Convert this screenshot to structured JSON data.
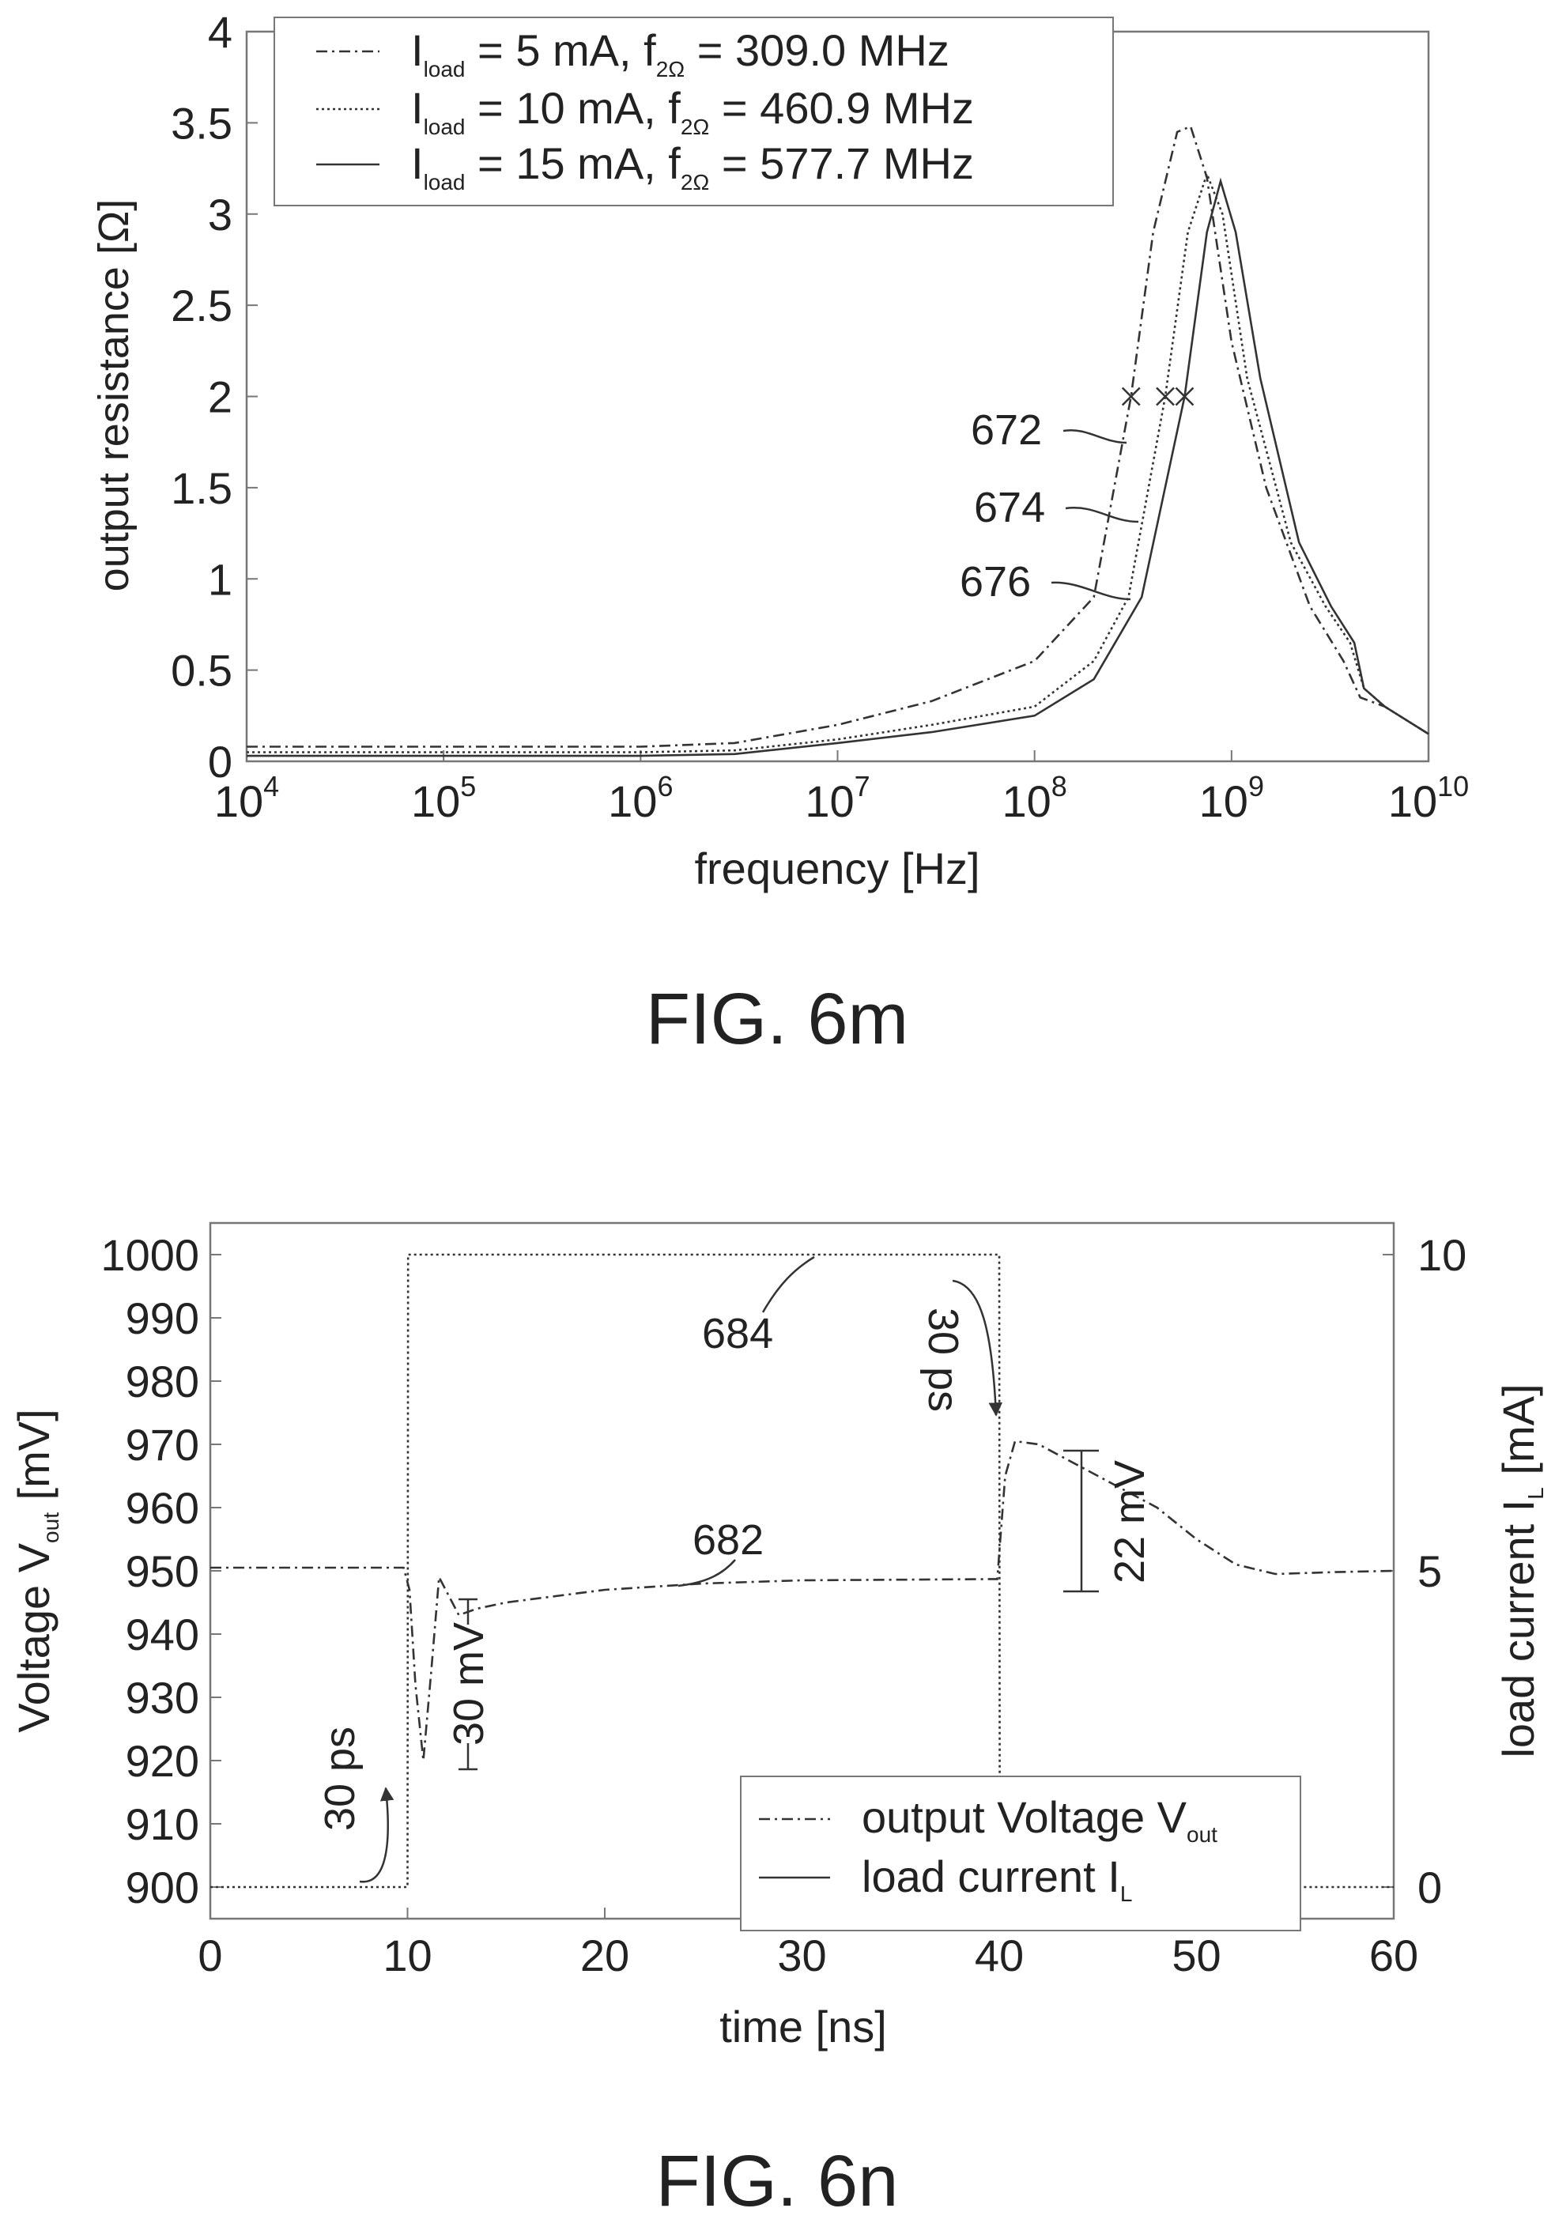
{
  "figures": {
    "fig_6m": {
      "caption": "FIG. 6m"
    },
    "fig_6n": {
      "caption": "FIG. 6n"
    }
  },
  "chart_data": [
    {
      "type": "line",
      "xlabel": "frequency [Hz]",
      "ylabel": "output resistance [Ω]",
      "xscale": "log",
      "xlim": [
        10000,
        10000000000
      ],
      "ylim": [
        0,
        4
      ],
      "x_ticks": [
        {
          "value": 10000,
          "base": "10",
          "exp": "4"
        },
        {
          "value": 100000,
          "base": "10",
          "exp": "5"
        },
        {
          "value": 1000000,
          "base": "10",
          "exp": "6"
        },
        {
          "value": 10000000,
          "base": "10",
          "exp": "7"
        },
        {
          "value": 100000000,
          "base": "10",
          "exp": "8"
        },
        {
          "value": 1000000000,
          "base": "10",
          "exp": "9"
        },
        {
          "value": 10000000000,
          "base": "10",
          "exp": "10"
        }
      ],
      "y_ticks": [
        "0",
        "0.5",
        "1",
        "1.5",
        "2",
        "2.5",
        "3",
        "3.5",
        "4"
      ],
      "legend_position": "top",
      "series": [
        {
          "legend": {
            "i": "I",
            "i_sub": "load",
            "mid": " = 5 mA, f",
            "f_sub": "2Ω",
            "tail": " = 309.0 MHz"
          },
          "ref_label": "672",
          "style": "dash-dot",
          "points": [
            [
              10000,
              0.08
            ],
            [
              1000000,
              0.08
            ],
            [
              3000000,
              0.1
            ],
            [
              10000000,
              0.2
            ],
            [
              30000000,
              0.33
            ],
            [
              100000000,
              0.55
            ],
            [
              200000000,
              0.9
            ],
            [
              309000000,
              2.0
            ],
            [
              400000000,
              2.9
            ],
            [
              530000000,
              3.45
            ],
            [
              620000000,
              3.48
            ],
            [
              750000000,
              3.2
            ],
            [
              1000000000,
              2.3
            ],
            [
              1500000000,
              1.5
            ],
            [
              2500000000,
              0.85
            ],
            [
              3700000000,
              0.55
            ],
            [
              4500000000,
              0.35
            ],
            [
              6000000000,
              0.3
            ],
            [
              10000000000,
              0.15
            ]
          ]
        },
        {
          "legend": {
            "i": "I",
            "i_sub": "load",
            "mid": " = 10 mA, f",
            "f_sub": "2Ω",
            "tail": " = 460.9 MHz"
          },
          "ref_label": "674",
          "style": "dotted",
          "points": [
            [
              10000,
              0.05
            ],
            [
              1000000,
              0.05
            ],
            [
              3000000,
              0.06
            ],
            [
              10000000,
              0.12
            ],
            [
              30000000,
              0.2
            ],
            [
              100000000,
              0.3
            ],
            [
              200000000,
              0.55
            ],
            [
              300000000,
              0.9
            ],
            [
              460900000,
              2.0
            ],
            [
              600000000,
              2.9
            ],
            [
              750000000,
              3.22
            ],
            [
              900000000,
              3.0
            ],
            [
              1200000000,
              2.1
            ],
            [
              2000000000,
              1.2
            ],
            [
              3000000000,
              0.85
            ],
            [
              4000000000,
              0.65
            ],
            [
              4700000000,
              0.4
            ],
            [
              6000000000,
              0.3
            ],
            [
              10000000000,
              0.15
            ]
          ]
        },
        {
          "legend": {
            "i": "I",
            "i_sub": "load",
            "mid": " = 15 mA, f",
            "f_sub": "2Ω",
            "tail": " = 577.7 MHz"
          },
          "ref_label": "676",
          "style": "solid",
          "points": [
            [
              10000,
              0.03
            ],
            [
              1000000,
              0.03
            ],
            [
              3000000,
              0.04
            ],
            [
              10000000,
              0.1
            ],
            [
              30000000,
              0.16
            ],
            [
              100000000,
              0.25
            ],
            [
              200000000,
              0.45
            ],
            [
              350000000,
              0.9
            ],
            [
              577700000,
              2.0
            ],
            [
              750000000,
              2.9
            ],
            [
              880000000,
              3.18
            ],
            [
              1050000000,
              2.9
            ],
            [
              1400000000,
              2.1
            ],
            [
              2200000000,
              1.2
            ],
            [
              3200000000,
              0.85
            ],
            [
              4200000000,
              0.65
            ],
            [
              4700000000,
              0.4
            ],
            [
              6000000000,
              0.3
            ],
            [
              10000000000,
              0.15
            ]
          ]
        }
      ],
      "markers": [
        [
          309000000,
          2.0
        ],
        [
          460900000,
          2.0
        ],
        [
          577700000,
          2.0
        ]
      ]
    },
    {
      "type": "line",
      "xlabel": "time [ns]",
      "ylabel_left": {
        "main": "Voltage V",
        "sub": "out",
        "unit": " [mV]"
      },
      "ylabel_right": {
        "main": "load current I",
        "sub": "L",
        "unit": " [mA]"
      },
      "xlim": [
        0,
        60
      ],
      "ylim_left": [
        895,
        1005
      ],
      "ylim_right": [
        -0.5,
        10.5
      ],
      "x_ticks": [
        "0",
        "10",
        "20",
        "30",
        "40",
        "50",
        "60"
      ],
      "y_ticks_left": [
        "900",
        "910",
        "920",
        "930",
        "940",
        "950",
        "960",
        "970",
        "980",
        "990",
        "1000"
      ],
      "y_ticks_right": [
        "0",
        "5",
        "10"
      ],
      "legend_position": "bottom-right",
      "series": [
        {
          "legend": {
            "main": "output Voltage V",
            "sub": "out"
          },
          "ref_label": "682",
          "axis": "left",
          "style": "dash-dot",
          "points": [
            [
              0,
              950.5
            ],
            [
              9.8,
              950.5
            ],
            [
              10.1,
              947
            ],
            [
              10.4,
              932
            ],
            [
              10.8,
              920
            ],
            [
              11.2,
              934
            ],
            [
              11.6,
              949
            ],
            [
              12.1,
              946
            ],
            [
              12.6,
              943
            ],
            [
              13.5,
              944
            ],
            [
              15,
              945
            ],
            [
              20,
              947
            ],
            [
              25,
              948
            ],
            [
              30,
              948.5
            ],
            [
              39.9,
              948.7
            ],
            [
              40.3,
              965
            ],
            [
              40.8,
              970.5
            ],
            [
              42,
              970
            ],
            [
              45,
              965
            ],
            [
              48,
              960
            ],
            [
              50,
              955
            ],
            [
              52,
              951
            ],
            [
              54,
              949.5
            ],
            [
              57,
              949.8
            ],
            [
              60,
              950
            ]
          ]
        },
        {
          "legend": {
            "main": "load current I",
            "sub": "L"
          },
          "ref_label": "684",
          "axis": "right",
          "style": "dotted",
          "points": [
            [
              0,
              0
            ],
            [
              10,
              0
            ],
            [
              10.03,
              10
            ],
            [
              40,
              10
            ],
            [
              40.03,
              0
            ],
            [
              60,
              0
            ]
          ]
        }
      ],
      "annotations": [
        {
          "text": "30 ps"
        },
        {
          "text": "30 ps"
        },
        {
          "text": "30 mV"
        },
        {
          "text": "22 mV"
        }
      ]
    }
  ]
}
